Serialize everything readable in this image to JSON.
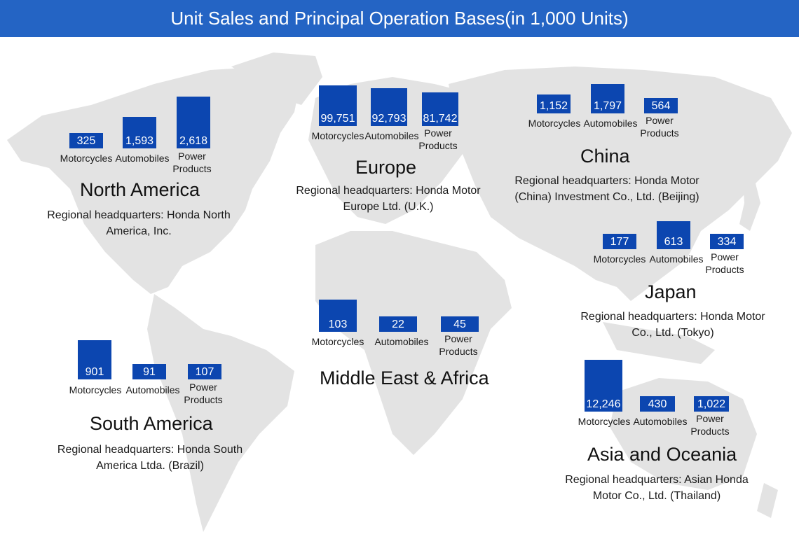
{
  "header": {
    "title": "Unit Sales and Principal Operation Bases(in 1,000 Units)"
  },
  "colors": {
    "header_bg": "#2464c4",
    "bar": "#0c46b0",
    "map": "#e3e3e3"
  },
  "chart_data": {
    "type": "bar",
    "title": "Unit Sales and Principal Operation Bases(in 1,000 Units)",
    "categories": [
      "Motorcycles",
      "Automobiles",
      "Power\nProducts"
    ],
    "regions": [
      {
        "name": "North America",
        "hq": "Regional headquarters: Honda North America, Inc.",
        "values": [
          325,
          1593,
          2618
        ],
        "labels": [
          "325",
          "1,593",
          "2,618"
        ]
      },
      {
        "name": "Europe",
        "hq": "Regional headquarters: Honda Motor Europe Ltd. (U.K.)",
        "values": [
          99751,
          92793,
          81742
        ],
        "labels": [
          "99,751",
          "92,793",
          "81,742"
        ]
      },
      {
        "name": "China",
        "hq": "Regional headquarters: Honda Motor (China) Investment Co., Ltd. (Beijing)",
        "values": [
          1152,
          1797,
          564
        ],
        "labels": [
          "1,152",
          "1,797",
          "564"
        ]
      },
      {
        "name": "Japan",
        "hq": "Regional headquarters: Honda Motor Co., Ltd. (Tokyo)",
        "values": [
          177,
          613,
          334
        ],
        "labels": [
          "177",
          "613",
          "334"
        ]
      },
      {
        "name": "Middle East & Africa",
        "hq": "",
        "values": [
          103,
          22,
          45
        ],
        "labels": [
          "103",
          "22",
          "45"
        ]
      },
      {
        "name": "South America",
        "hq": "Regional headquarters: Honda South America Ltda. (Brazil)",
        "values": [
          901,
          91,
          107
        ],
        "labels": [
          "901",
          "91",
          "107"
        ]
      },
      {
        "name": "Asia and Oceania",
        "hq": "Regional headquarters: Asian Honda Motor Co., Ltd. (Thailand)",
        "values": [
          12246,
          430,
          1022
        ],
        "labels": [
          "12,246",
          "430",
          "1,022"
        ]
      }
    ]
  }
}
